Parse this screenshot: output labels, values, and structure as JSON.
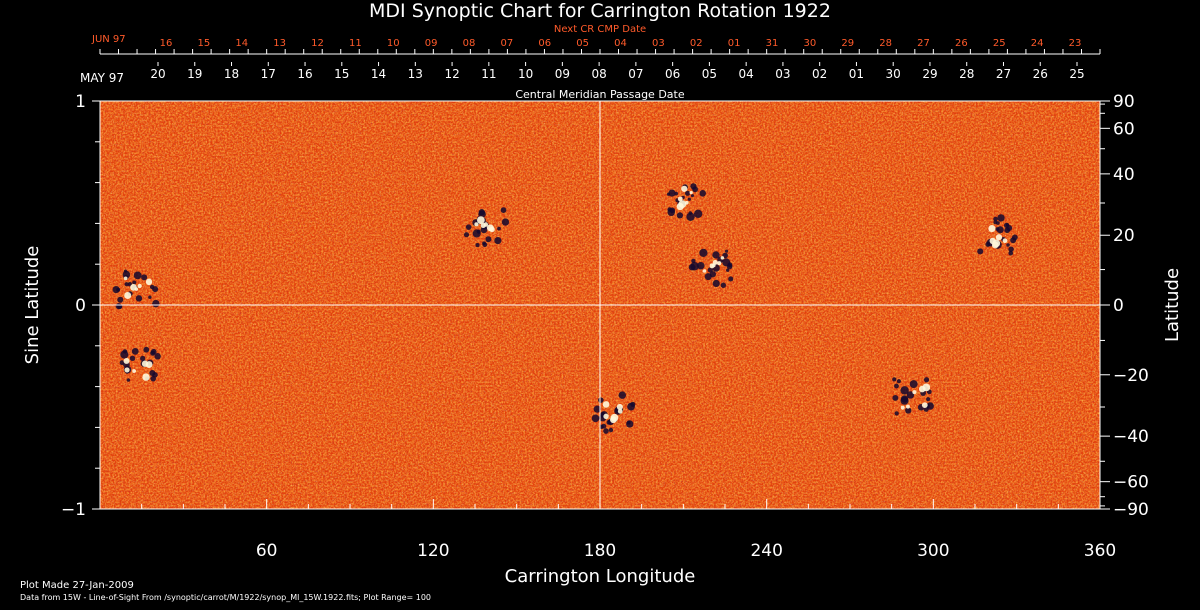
{
  "chart_data": {
    "type": "heatmap",
    "title": "MDI Synoptic Chart for Carrington Rotation 1922",
    "xlabel": "Carrington Longitude",
    "ylabel_left": "Sine Latitude",
    "ylabel_right": "Latitude",
    "xlim": [
      0,
      360
    ],
    "ylim": [
      -1,
      1
    ],
    "x_ticks": [
      60,
      120,
      180,
      240,
      300,
      360
    ],
    "y_ticks_left": [
      {
        "value": 1,
        "label": "1"
      },
      {
        "value": 0,
        "label": "0"
      },
      {
        "value": -1,
        "label": "−1"
      }
    ],
    "y_ticks_right": [
      90,
      60,
      40,
      20,
      0,
      -20,
      -40,
      -60,
      -90
    ],
    "top_axis_cmp": {
      "label": "Central Meridian Passage Date",
      "month_label": "MAY 97",
      "days": [
        "20",
        "19",
        "18",
        "17",
        "16",
        "15",
        "14",
        "13",
        "12",
        "11",
        "10",
        "09",
        "08",
        "07",
        "06",
        "05",
        "04",
        "03",
        "02",
        "01",
        "30",
        "29",
        "28",
        "27",
        "26",
        "25"
      ]
    },
    "top_axis_next": {
      "label": "Next CR CMP Date",
      "month_label": "JUN 97",
      "days": [
        "16",
        "15",
        "14",
        "13",
        "12",
        "11",
        "10",
        "09",
        "08",
        "07",
        "06",
        "05",
        "04",
        "03",
        "02",
        "01",
        "31",
        "30",
        "29",
        "28",
        "27",
        "26",
        "25",
        "24",
        "23"
      ],
      "color": "#ff5a2a"
    },
    "colormap": [
      "#ffffff",
      "#ffe08a",
      "#ffb040",
      "#ff6a1a",
      "#e8420f",
      "#b22a08",
      "#2a1048",
      "#06061a"
    ],
    "plot_range": 100,
    "grid": "center crosshair at longitude 180, sine latitude 0",
    "features": [
      {
        "name": "region",
        "lon": 13,
        "sinlat": 0.08
      },
      {
        "name": "region",
        "lon": 139,
        "sinlat": 0.38
      },
      {
        "name": "region",
        "lon": 210,
        "sinlat": 0.52
      },
      {
        "name": "region",
        "lon": 220,
        "sinlat": 0.18
      },
      {
        "name": "region",
        "lon": 324,
        "sinlat": 0.34
      },
      {
        "name": "region",
        "lon": 293,
        "sinlat": -0.45
      },
      {
        "name": "region",
        "lon": 185,
        "sinlat": -0.53
      },
      {
        "name": "region",
        "lon": 14,
        "sinlat": -0.3
      }
    ]
  },
  "footer": {
    "plot_made": "Plot Made 27-Jan-2009",
    "source": "Data from 15W - Line-of-Sight From /synoptic/carrot/M/1922/synop_Ml_15W.1922.fits; Plot Range=  100"
  }
}
